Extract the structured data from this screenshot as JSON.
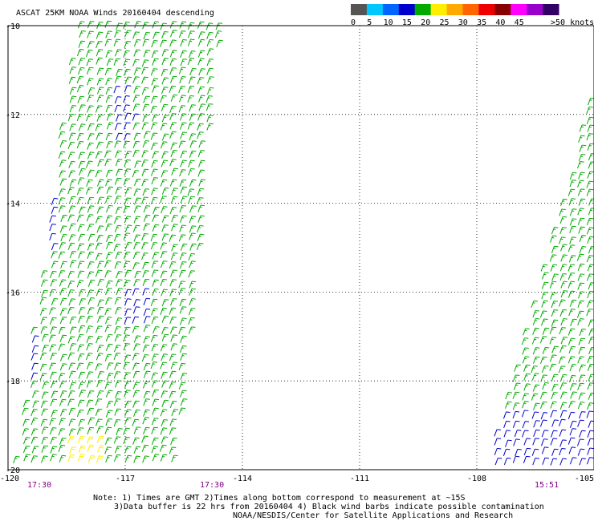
{
  "chart_data": {
    "type": "scatter",
    "title": "ASCAT 25KM NOAA Winds 20160404 descending",
    "xlabel": "",
    "ylabel": "",
    "xlim": [
      -120,
      -105
    ],
    "ylim": [
      -20,
      -10
    ],
    "x_ticks": [
      "-120",
      "-117",
      "-114",
      "-111",
      "-108",
      "-105"
    ],
    "y_ticks": [
      "-10",
      "-12",
      "-14",
      "-16",
      "-18",
      "-20"
    ],
    "grid": "dotted",
    "colorbar": {
      "ticks": [
        "0",
        "5",
        "10",
        "15",
        "20",
        "25",
        "30",
        "35",
        "40",
        "45",
        ">50 knots"
      ],
      "colors": [
        "#555555",
        "#00c8ff",
        "#0066ff",
        "#0000cc",
        "#00aa00",
        "#ffee00",
        "#ffaa00",
        "#ff6600",
        "#ee0000",
        "#880000",
        "#ff00ff",
        "#9900cc",
        "#330066"
      ]
    },
    "swaths": [
      {
        "name": "",
        "time_label": "17:30",
        "time_label_2": "17:30",
        "dominant_speed_knots": 17,
        "corners": [
          [
            -118.3,
            -10
          ],
          [
            -114.6,
            -10
          ],
          [
            -115.7,
            -20
          ],
          [
            -119.9,
            -20
          ]
        ],
        "regions": [
          {
            "speed_knots": 12,
            "lon_range": [
              -117.4,
              -116.8
            ],
            "lat_range": [
              -12.6,
              -11.5
            ]
          },
          {
            "speed_knots": 12,
            "lon_range": [
              -119.6,
              -118.8
            ],
            "lat_range": [
              -15.2,
              -13.6
            ]
          },
          {
            "speed_knots": 12,
            "lon_range": [
              -117.2,
              -116.4
            ],
            "lat_range": [
              -16.8,
              -16.0
            ]
          },
          {
            "speed_knots": 12,
            "lon_range": [
              -119.8,
              -119.3
            ],
            "lat_range": [
              -18.0,
              -17.0
            ]
          },
          {
            "speed_knots": 22,
            "lon_range": [
              -118.5,
              -117.6
            ],
            "lat_range": [
              -20.0,
              -19.3
            ]
          }
        ]
      },
      {
        "name": "",
        "time_label": "15:51",
        "dominant_speed_knots": 17,
        "corners": [
          [
            -105.1,
            -11.5
          ],
          [
            -105.0,
            -11.5
          ],
          [
            -105.0,
            -20
          ],
          [
            -107.8,
            -20
          ]
        ],
        "regions": [
          {
            "speed_knots": 12,
            "lon_range": [
              -107.8,
              -105.0
            ],
            "lat_range": [
              -20.0,
              -18.7
            ]
          }
        ]
      }
    ]
  },
  "notes": {
    "line1": "Note: 1) Times are GMT 2)Times along bottom correspond to measurement at ~15S",
    "line2": "3)Data buffer is 22 hrs from 20160404 4) Black wind barbs indicate possible contamination",
    "line3": "NOAA/NESDIS/Center for Satellite Applications and Research"
  }
}
